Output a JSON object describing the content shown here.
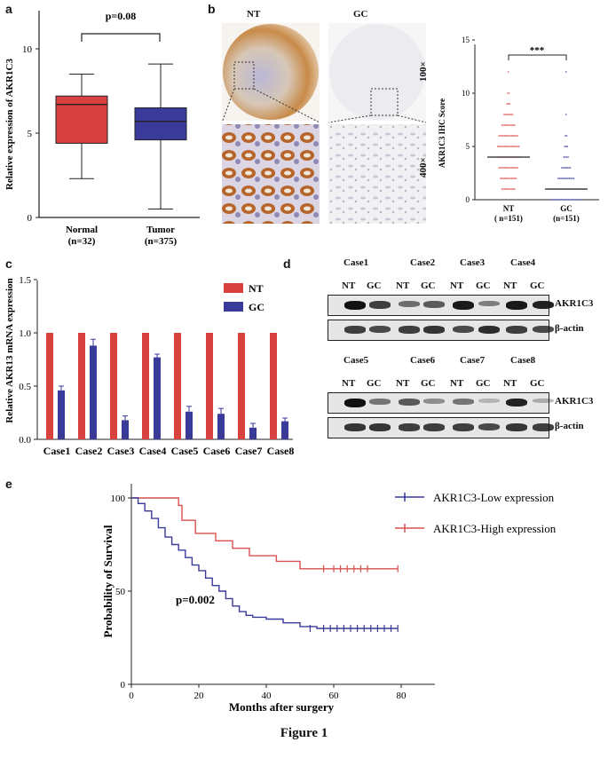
{
  "panels": {
    "a": "a",
    "b": "b",
    "c": "c",
    "d": "d",
    "e": "e"
  },
  "figure_caption": "Figure 1",
  "panel_a": {
    "pvalue": "p=0.08",
    "ylabel": "Relative expression of AKR1C3",
    "yticks": [
      "0",
      "5",
      "10"
    ],
    "groups": [
      {
        "name": "Normal",
        "n": "(n=32)",
        "color": "#d94040",
        "min": 2.3,
        "q1": 4.4,
        "median": 6.7,
        "q3": 7.2,
        "max": 8.5
      },
      {
        "name": "Tumor",
        "n": "(n=375)",
        "color": "#3a3a9a",
        "min": 0.5,
        "q1": 4.6,
        "median": 5.7,
        "q3": 6.5,
        "max": 9.1
      }
    ],
    "chart_data": {
      "type": "box",
      "ylim": [
        0,
        12
      ]
    }
  },
  "panel_b": {
    "col_nt": "NT",
    "col_gc": "GC",
    "row1": "100×",
    "row2": "400×",
    "ylabel": "AKR1C3 IHC Score",
    "sig": "***",
    "yticks": [
      "0",
      "5",
      "10",
      "15"
    ],
    "x1": "NT",
    "x1n": "( n=151)",
    "x2": "GC",
    "x2n": "(n=151)",
    "chart_data": {
      "type": "scatter",
      "median_nt": 4,
      "median_gc": 1,
      "ylim": [
        0,
        15
      ]
    }
  },
  "panel_c": {
    "ylabel": "Relative AKR13 mRNA expression",
    "legend_nt": "NT",
    "legend_gc": "GC",
    "yticks": [
      "0.0",
      "0.5",
      "1.0",
      "1.5"
    ],
    "chart_data": {
      "type": "bar",
      "categories": [
        "Case1",
        "Case2",
        "Case3",
        "Case4",
        "Case5",
        "Case6",
        "Case7",
        "Case8"
      ],
      "series": [
        {
          "name": "NT",
          "color": "#d94040",
          "values": [
            1,
            1,
            1,
            1,
            1,
            1,
            1,
            1
          ]
        },
        {
          "name": "GC",
          "color": "#3a3a9a",
          "values": [
            0.46,
            0.88,
            0.18,
            0.77,
            0.26,
            0.24,
            0.11,
            0.17
          ],
          "errors": [
            0.04,
            0.06,
            0.04,
            0.03,
            0.05,
            0.05,
            0.04,
            0.03
          ]
        }
      ],
      "ylim": [
        0,
        1.5
      ]
    }
  },
  "panel_d": {
    "cases_top": [
      "Case1",
      "Case2",
      "Case3",
      "Case4"
    ],
    "cases_bottom": [
      "Case5",
      "Case6",
      "Case7",
      "Case8"
    ],
    "lanes": [
      "NT",
      "GC",
      "NT",
      "GC",
      "NT",
      "GC",
      "NT",
      "GC"
    ],
    "protein": "AKR1C3",
    "loading": "β-actin"
  },
  "panel_e": {
    "legend_low": "AKR1C3-Low expression",
    "legend_high": "AKR1C3-High expression",
    "pvalue": "p=0.002",
    "ylabel": "Probability of Survival",
    "xlabel": "Months after surgery",
    "yticks": [
      "0",
      "50",
      "100"
    ],
    "xticks": [
      "0",
      "20",
      "40",
      "60",
      "80"
    ],
    "chart_data": {
      "type": "line",
      "xlim": [
        0,
        90
      ],
      "ylim": [
        0,
        100
      ],
      "series": [
        {
          "name": "AKR1C3-High expression",
          "color": "#d9504f",
          "points": [
            [
              0,
              100
            ],
            [
              14,
              100
            ],
            [
              14,
              96
            ],
            [
              15,
              96
            ],
            [
              15,
              88
            ],
            [
              19,
              88
            ],
            [
              19,
              81
            ],
            [
              25,
              81
            ],
            [
              25,
              77
            ],
            [
              30,
              77
            ],
            [
              30,
              73
            ],
            [
              35,
              73
            ],
            [
              35,
              69
            ],
            [
              43,
              69
            ],
            [
              43,
              66
            ],
            [
              50,
              66
            ],
            [
              50,
              62
            ],
            [
              79,
              62
            ]
          ],
          "censor": [
            57,
            60,
            62,
            64,
            66,
            68,
            70,
            79
          ]
        },
        {
          "name": "AKR1C3-Low expression",
          "color": "#3a3a9a",
          "points": [
            [
              0,
              100
            ],
            [
              2,
              97
            ],
            [
              4,
              93
            ],
            [
              6,
              89
            ],
            [
              8,
              84
            ],
            [
              10,
              79
            ],
            [
              12,
              75
            ],
            [
              14,
              72
            ],
            [
              16,
              68
            ],
            [
              18,
              64
            ],
            [
              20,
              61
            ],
            [
              22,
              57
            ],
            [
              24,
              53
            ],
            [
              26,
              50
            ],
            [
              28,
              46
            ],
            [
              30,
              42
            ],
            [
              32,
              39
            ],
            [
              34,
              37
            ],
            [
              36,
              36
            ],
            [
              40,
              35
            ],
            [
              45,
              33
            ],
            [
              50,
              31
            ],
            [
              55,
              30
            ],
            [
              79,
              30
            ]
          ],
          "censor": [
            53,
            57,
            59,
            61,
            63,
            65,
            67,
            69,
            71,
            73,
            75,
            77,
            79
          ]
        }
      ]
    }
  }
}
